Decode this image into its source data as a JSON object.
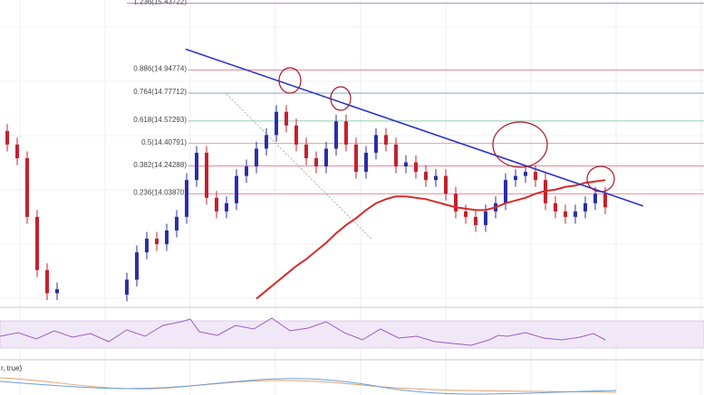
{
  "chart_data": {
    "type": "candlestick",
    "ylim": [
      13.24,
      15.46
    ],
    "up_color": "#2b2fa8",
    "down_color": "#c4222e",
    "fib_levels": [
      {
        "value": 15.43722,
        "label": "1.236(15.43722)",
        "color": "#a77fc9"
      },
      {
        "value": 14.94774,
        "label": "0.886(14.94774)",
        "color": "#e27380"
      },
      {
        "value": 14.77712,
        "label": "0.764(14.77712)",
        "color": "#6f98c4"
      },
      {
        "value": 14.57293,
        "label": "0.618(14.57293)",
        "color": "#6fbf92"
      },
      {
        "value": 14.40791,
        "label": "0.5(14.40791)",
        "color": "#e27380"
      },
      {
        "value": 14.24288,
        "label": "0.382(14.24288)",
        "color": "#e27380"
      },
      {
        "value": 14.0387,
        "label": "0.236(14.03870)",
        "color": "#e27380"
      }
    ],
    "open": [
      14.5,
      14.4,
      14.3,
      13.87,
      13.48,
      13.31,
      null,
      null,
      null,
      null,
      null,
      null,
      13.3,
      13.41,
      13.61,
      13.71,
      13.67,
      13.77,
      13.87,
      14.14,
      14.34,
      14.01,
      13.91,
      13.97,
      14.17,
      14.24,
      14.37,
      14.47,
      14.64,
      14.54,
      14.4,
      14.3,
      14.24,
      14.37,
      14.57,
      14.4,
      14.2,
      14.34,
      14.47,
      14.4,
      14.24,
      14.27,
      14.2,
      14.14,
      14.17,
      14.04,
      13.91,
      13.87,
      13.81,
      13.91,
      13.97,
      14.14,
      14.17,
      14.2,
      14.14,
      13.97,
      13.91,
      13.87,
      13.91,
      13.97,
      14.04
    ],
    "high": [
      14.55,
      14.45,
      14.35,
      13.92,
      13.53,
      13.39,
      null,
      null,
      null,
      null,
      null,
      null,
      13.46,
      13.66,
      13.76,
      13.76,
      13.82,
      13.92,
      14.19,
      14.39,
      14.39,
      14.06,
      14.02,
      14.22,
      14.29,
      14.42,
      14.52,
      14.69,
      14.69,
      14.59,
      14.45,
      14.35,
      14.42,
      14.62,
      14.62,
      14.45,
      14.39,
      14.52,
      14.52,
      14.45,
      14.32,
      14.32,
      14.25,
      14.22,
      14.22,
      14.09,
      13.96,
      13.92,
      13.96,
      14.02,
      14.19,
      14.22,
      14.25,
      14.25,
      14.19,
      14.02,
      13.96,
      13.96,
      14.02,
      14.09,
      14.09
    ],
    "low": [
      14.35,
      14.25,
      13.82,
      13.43,
      13.26,
      13.26,
      null,
      null,
      null,
      null,
      null,
      null,
      13.25,
      13.36,
      13.56,
      13.62,
      13.62,
      13.72,
      13.82,
      14.09,
      13.96,
      13.86,
      13.86,
      13.92,
      14.12,
      14.19,
      14.32,
      14.42,
      14.49,
      14.35,
      14.25,
      14.19,
      14.19,
      14.32,
      14.35,
      14.15,
      14.15,
      14.29,
      14.35,
      14.19,
      14.19,
      14.15,
      14.09,
      14.09,
      13.99,
      13.86,
      13.82,
      13.76,
      13.76,
      13.86,
      13.92,
      14.09,
      14.12,
      14.09,
      13.92,
      13.86,
      13.82,
      13.82,
      13.86,
      13.92,
      13.89
    ],
    "close": [
      14.4,
      14.3,
      13.87,
      13.48,
      13.31,
      13.34,
      null,
      null,
      null,
      null,
      null,
      null,
      13.41,
      13.61,
      13.71,
      13.67,
      13.77,
      13.87,
      14.14,
      14.34,
      14.01,
      13.91,
      13.97,
      14.17,
      14.24,
      14.37,
      14.47,
      14.64,
      14.54,
      14.4,
      14.3,
      14.24,
      14.37,
      14.57,
      14.4,
      14.2,
      14.34,
      14.47,
      14.4,
      14.24,
      14.27,
      14.2,
      14.14,
      14.17,
      14.04,
      13.91,
      13.87,
      13.81,
      13.91,
      13.97,
      14.14,
      14.17,
      14.2,
      14.14,
      13.97,
      13.91,
      13.87,
      13.91,
      13.97,
      14.04,
      13.94
    ],
    "moving_average": {
      "color": "#d62a2a",
      "values": [
        null,
        null,
        null,
        null,
        null,
        null,
        null,
        null,
        null,
        null,
        null,
        null,
        null,
        null,
        null,
        null,
        null,
        null,
        null,
        null,
        null,
        null,
        null,
        null,
        null,
        13.27,
        13.33,
        13.39,
        13.45,
        13.51,
        13.56,
        13.62,
        13.68,
        13.75,
        13.81,
        13.86,
        13.92,
        13.97,
        14.0,
        14.02,
        14.02,
        14.01,
        14.0,
        13.98,
        13.96,
        13.94,
        13.93,
        13.92,
        13.92,
        13.94,
        13.97,
        13.99,
        14.01,
        14.04,
        14.06,
        14.07,
        14.09,
        14.1,
        14.12,
        14.13,
        14.14
      ]
    },
    "trendline": {
      "color": "#2b35c4",
      "start": [
        17.9,
        15.1
      ],
      "end": [
        63.8,
        13.95
      ]
    },
    "dotted_line": {
      "color": "#999999",
      "start": [
        22,
        14.77
      ],
      "end": [
        36.5,
        13.71
      ]
    },
    "macd_label": "r, true)"
  }
}
